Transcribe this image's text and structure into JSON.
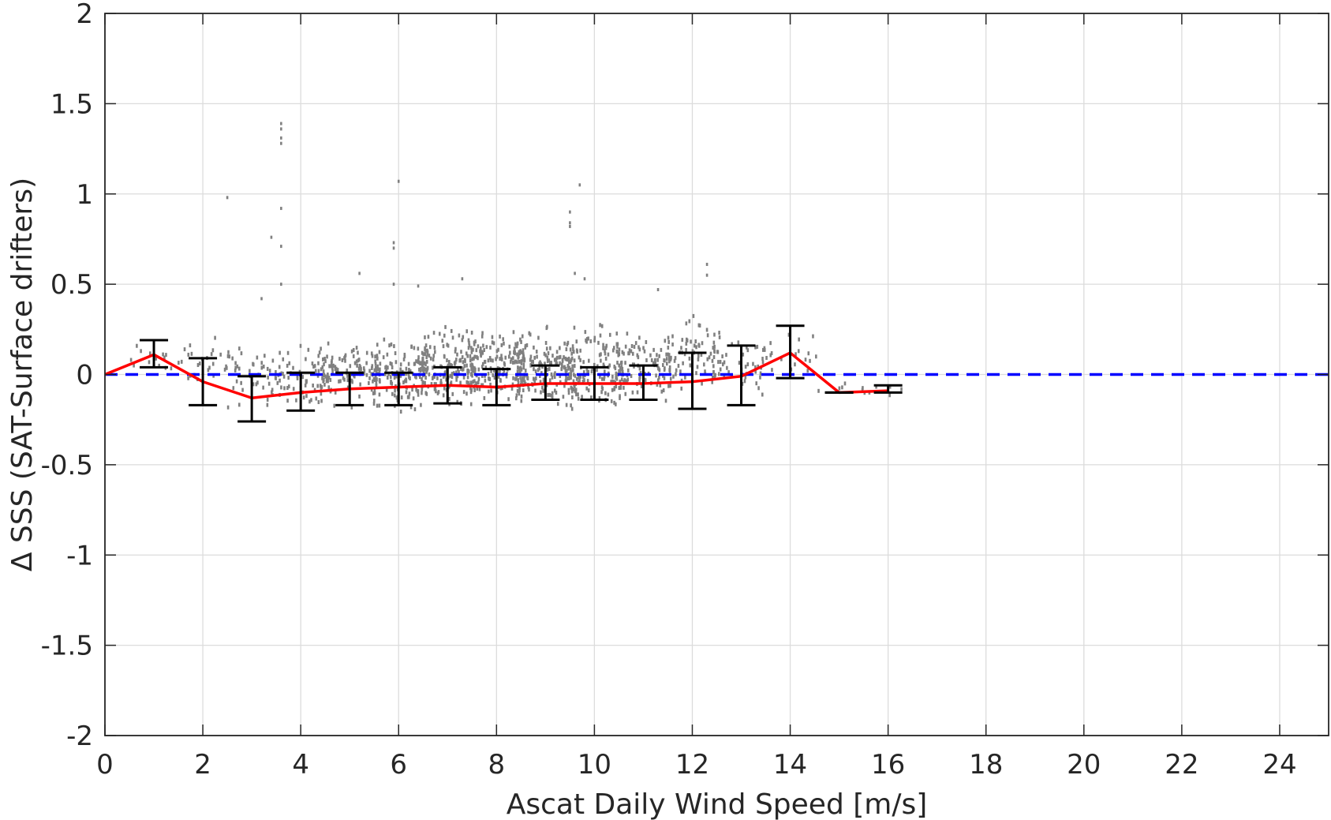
{
  "chart_data": {
    "type": "scatter",
    "title": "",
    "xlabel": "Ascat Daily Wind Speed [m/s]",
    "ylabel": "Δ SSS (SAT-Surface drifters)",
    "xlim": [
      0,
      25
    ],
    "ylim": [
      -2,
      2
    ],
    "xticks": [
      0,
      2,
      4,
      6,
      8,
      10,
      12,
      14,
      16,
      18,
      20,
      22,
      24
    ],
    "xtick_labels": [
      "0",
      "2",
      "4",
      "6",
      "8",
      "10",
      "12",
      "14",
      "16",
      "18",
      "20",
      "22",
      "24"
    ],
    "yticks": [
      2,
      1.5,
      1,
      0.5,
      0,
      -0.5,
      -1,
      -1.5,
      -2
    ],
    "ytick_labels": [
      "2",
      "1.5",
      "1",
      "0.5",
      "0",
      "-0.5",
      "-1",
      "-1.5",
      "-2"
    ],
    "grid": true,
    "colors": {
      "scatter": "#808080",
      "mean_line": "#ff0000",
      "error_bars": "#000000",
      "zero_line": "#0000ff",
      "grid": "#dcdcdc",
      "axes": "#262626"
    },
    "reference_line": {
      "y": 0,
      "style": "dashed"
    },
    "mean_line": {
      "x": [
        0,
        1,
        2,
        3,
        4,
        5,
        6,
        7,
        8,
        9,
        10,
        11,
        12,
        13,
        14,
        15,
        16
      ],
      "y": [
        0.0,
        0.11,
        -0.04,
        -0.13,
        -0.1,
        -0.08,
        -0.07,
        -0.06,
        -0.07,
        -0.05,
        -0.05,
        -0.05,
        -0.04,
        -0.01,
        0.12,
        -0.1,
        -0.09
      ]
    },
    "error_bars": [
      {
        "x": 1,
        "low": 0.04,
        "high": 0.19
      },
      {
        "x": 2,
        "low": -0.17,
        "high": 0.09
      },
      {
        "x": 3,
        "low": -0.26,
        "high": -0.01
      },
      {
        "x": 4,
        "low": -0.2,
        "high": 0.01
      },
      {
        "x": 5,
        "low": -0.17,
        "high": 0.01
      },
      {
        "x": 6,
        "low": -0.17,
        "high": 0.01
      },
      {
        "x": 7,
        "low": -0.16,
        "high": 0.04
      },
      {
        "x": 8,
        "low": -0.17,
        "high": 0.03
      },
      {
        "x": 9,
        "low": -0.14,
        "high": 0.05
      },
      {
        "x": 10,
        "low": -0.14,
        "high": 0.04
      },
      {
        "x": 11,
        "low": -0.14,
        "high": 0.05
      },
      {
        "x": 12,
        "low": -0.19,
        "high": 0.12
      },
      {
        "x": 13,
        "low": -0.17,
        "high": 0.16
      },
      {
        "x": 14,
        "low": -0.02,
        "high": 0.27
      },
      {
        "x": 15,
        "low": -0.1,
        "high": -0.1
      },
      {
        "x": 16,
        "low": -0.1,
        "high": -0.06
      }
    ],
    "scatter_bins": [
      {
        "x0": 0.4,
        "x1": 1.6,
        "lo": -0.05,
        "hi": 0.2,
        "n": 14
      },
      {
        "x0": 1.4,
        "x1": 2.6,
        "lo": -0.12,
        "hi": 0.25,
        "n": 22
      },
      {
        "x0": 2.4,
        "x1": 3.6,
        "lo": -0.24,
        "hi": 0.22,
        "n": 45
      },
      {
        "x0": 3.4,
        "x1": 4.6,
        "lo": -0.22,
        "hi": 0.2,
        "n": 70
      },
      {
        "x0": 4.4,
        "x1": 5.6,
        "lo": -0.22,
        "hi": 0.25,
        "n": 110
      },
      {
        "x0": 5.4,
        "x1": 6.6,
        "lo": -0.24,
        "hi": 0.25,
        "n": 140
      },
      {
        "x0": 6.4,
        "x1": 7.6,
        "lo": -0.24,
        "hi": 0.3,
        "n": 170
      },
      {
        "x0": 7.4,
        "x1": 8.6,
        "lo": -0.24,
        "hi": 0.3,
        "n": 180
      },
      {
        "x0": 8.4,
        "x1": 9.6,
        "lo": -0.25,
        "hi": 0.3,
        "n": 170
      },
      {
        "x0": 9.4,
        "x1": 10.6,
        "lo": -0.28,
        "hi": 0.35,
        "n": 150
      },
      {
        "x0": 10.4,
        "x1": 11.6,
        "lo": -0.22,
        "hi": 0.3,
        "n": 110
      },
      {
        "x0": 11.4,
        "x1": 12.6,
        "lo": -0.18,
        "hi": 0.4,
        "n": 80
      },
      {
        "x0": 12.4,
        "x1": 13.6,
        "lo": -0.16,
        "hi": 0.28,
        "n": 45
      },
      {
        "x0": 13.4,
        "x1": 14.6,
        "lo": -0.05,
        "hi": 0.25,
        "n": 20
      },
      {
        "x0": 14.5,
        "x1": 16.3,
        "lo": -0.12,
        "hi": -0.04,
        "n": 12
      }
    ],
    "scatter_outliers": [
      {
        "x": 2.5,
        "y": 0.98
      },
      {
        "x": 3.6,
        "y": 1.39
      },
      {
        "x": 3.6,
        "y": 1.36
      },
      {
        "x": 3.6,
        "y": 1.31
      },
      {
        "x": 3.6,
        "y": 1.28
      },
      {
        "x": 3.6,
        "y": 0.92
      },
      {
        "x": 3.6,
        "y": 0.71
      },
      {
        "x": 3.4,
        "y": 0.76
      },
      {
        "x": 3.6,
        "y": 0.5
      },
      {
        "x": 3.2,
        "y": 0.42
      },
      {
        "x": 5.2,
        "y": 0.56
      },
      {
        "x": 6.0,
        "y": 1.07
      },
      {
        "x": 5.9,
        "y": 0.73
      },
      {
        "x": 5.9,
        "y": 0.7
      },
      {
        "x": 5.9,
        "y": 0.5
      },
      {
        "x": 6.4,
        "y": 0.49
      },
      {
        "x": 7.3,
        "y": 0.53
      },
      {
        "x": 9.5,
        "y": 0.9
      },
      {
        "x": 9.5,
        "y": 0.84
      },
      {
        "x": 9.5,
        "y": 0.82
      },
      {
        "x": 9.7,
        "y": 1.05
      },
      {
        "x": 9.6,
        "y": 0.56
      },
      {
        "x": 9.8,
        "y": 0.53
      },
      {
        "x": 11.3,
        "y": 0.47
      },
      {
        "x": 12.3,
        "y": 0.61
      },
      {
        "x": 12.3,
        "y": 0.55
      }
    ]
  }
}
